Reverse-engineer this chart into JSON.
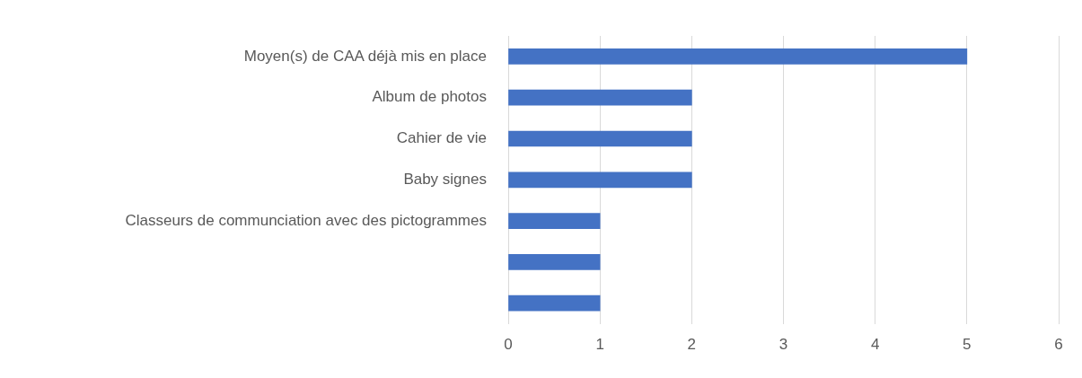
{
  "chart_data": {
    "type": "bar",
    "orientation": "horizontal",
    "categories": [
      "Moyen(s) de CAA déjà mis en place",
      "Album de photos",
      "Cahier de vie",
      "Baby signes",
      "Classeurs de communciation avec des pictogrammes",
      null,
      null
    ],
    "values": [
      5,
      2,
      2,
      2,
      1,
      1,
      1
    ],
    "color": "#4472c4",
    "xlim": [
      0,
      6
    ],
    "xticks": [
      0,
      1,
      2,
      3,
      4,
      5,
      6
    ],
    "grid": "x",
    "legend": false
  }
}
